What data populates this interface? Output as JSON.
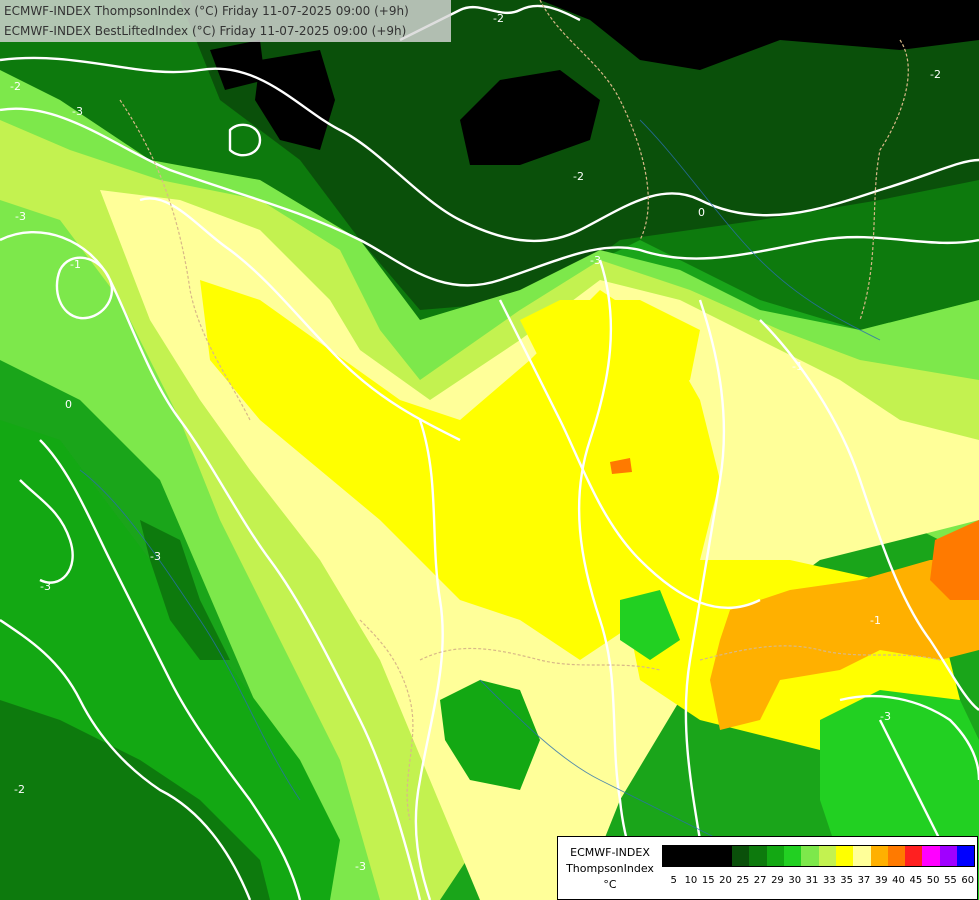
{
  "header": {
    "line1": "ECMWF-INDEX ThompsonIndex (°C) Friday 11-07-2025 09:00 (+9h)",
    "line2": "ECMWF-INDEX BestLiftedIndex (°C) Friday 11-07-2025 09:00 (+9h)"
  },
  "legend": {
    "title1": "ECMWF-INDEX",
    "title2": "ThompsonIndex",
    "unit": "°C",
    "ticks": [
      "5",
      "10",
      "15",
      "20",
      "25",
      "27",
      "29",
      "30",
      "31",
      "33",
      "35",
      "37",
      "39",
      "40",
      "45",
      "50",
      "55",
      "60"
    ],
    "colors": [
      "#000000",
      "#000000",
      "#000000",
      "#000000",
      "#0a500a",
      "#0d7a0d",
      "#13a813",
      "#22d022",
      "#7de84b",
      "#c3f250",
      "#ffff00",
      "#ffff99",
      "#ffb000",
      "#ff7a00",
      "#ff2020",
      "#ff00ff",
      "#a000ff",
      "#0000ff"
    ]
  },
  "contour_labels": [
    "-2",
    "-3",
    "-1",
    "0",
    "-3",
    "-2",
    "-3",
    "-3",
    "-1",
    "-2",
    "-3",
    "-3",
    "0",
    "-1",
    "-2",
    "-3",
    "-2"
  ]
}
